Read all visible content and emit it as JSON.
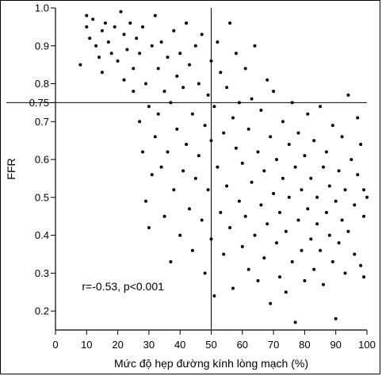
{
  "chart_data": {
    "type": "scatter",
    "xlabel": "Mức độ hẹp đường kính lòng mạch (%)",
    "ylabel": "FFR",
    "xlim": [
      0,
      100
    ],
    "ylim": [
      0.15,
      1.0
    ],
    "x_ticks": [
      0,
      10,
      20,
      30,
      40,
      50,
      60,
      70,
      80,
      90,
      100
    ],
    "y_ticks": [
      0.2,
      0.3,
      0.4,
      0.5,
      0.6,
      0.7,
      0.75,
      0.8,
      0.9,
      1.0
    ],
    "y_tick_labels": [
      "0.2",
      "0.3",
      "0.4",
      "0.5",
      "0.6",
      "0.7",
      "0.75",
      "0.8",
      "0.9",
      "1.0"
    ],
    "reference_lines": [
      {
        "axis": "x",
        "value": 50
      },
      {
        "axis": "y",
        "value": 0.75
      }
    ],
    "annotation": "r=-0.53, p<0.001",
    "grid": false,
    "point_color": "#000000",
    "points": [
      [
        8,
        0.85
      ],
      [
        10,
        0.98
      ],
      [
        10,
        0.95
      ],
      [
        11,
        0.92
      ],
      [
        12,
        0.97
      ],
      [
        13,
        0.9
      ],
      [
        14,
        0.87
      ],
      [
        15,
        0.94
      ],
      [
        15,
        0.83
      ],
      [
        16,
        0.96
      ],
      [
        17,
        0.91
      ],
      [
        18,
        0.88
      ],
      [
        19,
        0.95
      ],
      [
        20,
        0.86
      ],
      [
        21,
        0.99
      ],
      [
        22,
        0.93
      ],
      [
        22,
        0.81
      ],
      [
        23,
        0.89
      ],
      [
        24,
        0.96
      ],
      [
        25,
        0.84
      ],
      [
        25,
        0.78
      ],
      [
        26,
        0.92
      ],
      [
        27,
        0.88
      ],
      [
        27,
        0.7
      ],
      [
        28,
        0.95
      ],
      [
        28,
        0.62
      ],
      [
        29,
        0.8
      ],
      [
        29,
        0.49
      ],
      [
        30,
        0.42
      ],
      [
        30,
        0.74
      ],
      [
        31,
        0.9
      ],
      [
        31,
        0.56
      ],
      [
        32,
        0.66
      ],
      [
        32,
        0.98
      ],
      [
        33,
        0.84
      ],
      [
        33,
        0.72
      ],
      [
        34,
        0.58
      ],
      [
        34,
        0.91
      ],
      [
        35,
        0.45
      ],
      [
        35,
        0.78
      ],
      [
        36,
        0.87
      ],
      [
        36,
        0.62
      ],
      [
        37,
        0.33
      ],
      [
        37,
        0.75
      ],
      [
        38,
        0.94
      ],
      [
        38,
        0.52
      ],
      [
        39,
        0.68
      ],
      [
        39,
        0.82
      ],
      [
        40,
        0.4
      ],
      [
        40,
        0.88
      ],
      [
        41,
        0.57
      ],
      [
        41,
        0.79
      ],
      [
        42,
        0.96
      ],
      [
        42,
        0.64
      ],
      [
        43,
        0.47
      ],
      [
        43,
        0.85
      ],
      [
        44,
        0.72
      ],
      [
        44,
        0.36
      ],
      [
        45,
        0.9
      ],
      [
        45,
        0.55
      ],
      [
        46,
        0.8
      ],
      [
        46,
        0.61
      ],
      [
        47,
        0.44
      ],
      [
        47,
        0.93
      ],
      [
        48,
        0.69
      ],
      [
        48,
        0.3
      ],
      [
        49,
        0.77
      ],
      [
        49,
        0.52
      ],
      [
        50,
        0.86
      ],
      [
        50,
        0.39
      ],
      [
        50,
        0.65
      ],
      [
        51,
        0.24
      ],
      [
        51,
        0.74
      ],
      [
        52,
        0.58
      ],
      [
        52,
        0.91
      ],
      [
        53,
        0.46
      ],
      [
        53,
        0.83
      ],
      [
        54,
        0.67
      ],
      [
        54,
        0.35
      ],
      [
        55,
        0.79
      ],
      [
        55,
        0.53
      ],
      [
        56,
        0.96
      ],
      [
        56,
        0.42
      ],
      [
        57,
        0.71
      ],
      [
        57,
        0.26
      ],
      [
        58,
        0.63
      ],
      [
        58,
        0.88
      ],
      [
        59,
        0.49
      ],
      [
        59,
        0.75
      ],
      [
        60,
        0.37
      ],
      [
        60,
        0.59
      ],
      [
        61,
        0.84
      ],
      [
        61,
        0.45
      ],
      [
        62,
        0.68
      ],
      [
        62,
        0.31
      ],
      [
        63,
        0.76
      ],
      [
        63,
        0.54
      ],
      [
        64,
        0.4
      ],
      [
        64,
        0.9
      ],
      [
        65,
        0.62
      ],
      [
        65,
        0.28
      ],
      [
        66,
        0.73
      ],
      [
        66,
        0.48
      ],
      [
        67,
        0.57
      ],
      [
        67,
        0.34
      ],
      [
        68,
        0.81
      ],
      [
        68,
        0.43
      ],
      [
        69,
        0.66
      ],
      [
        69,
        0.22
      ],
      [
        70,
        0.51
      ],
      [
        70,
        0.78
      ],
      [
        71,
        0.38
      ],
      [
        71,
        0.6
      ],
      [
        72,
        0.46
      ],
      [
        72,
        0.29
      ],
      [
        73,
        0.7
      ],
      [
        73,
        0.55
      ],
      [
        74,
        0.41
      ],
      [
        74,
        0.25
      ],
      [
        75,
        0.64
      ],
      [
        75,
        0.5
      ],
      [
        76,
        0.33
      ],
      [
        76,
        0.75
      ],
      [
        77,
        0.17
      ],
      [
        77,
        0.58
      ],
      [
        78,
        0.44
      ],
      [
        78,
        0.67
      ],
      [
        79,
        0.36
      ],
      [
        79,
        0.52
      ],
      [
        80,
        0.28
      ],
      [
        80,
        0.61
      ],
      [
        81,
        0.47
      ],
      [
        81,
        0.72
      ],
      [
        82,
        0.39
      ],
      [
        82,
        0.55
      ],
      [
        83,
        0.31
      ],
      [
        83,
        0.65
      ],
      [
        84,
        0.43
      ],
      [
        84,
        0.5
      ],
      [
        85,
        0.36
      ],
      [
        85,
        0.74
      ],
      [
        86,
        0.58
      ],
      [
        86,
        0.27
      ],
      [
        87,
        0.46
      ],
      [
        87,
        0.62
      ],
      [
        88,
        0.4
      ],
      [
        88,
        0.53
      ],
      [
        89,
        0.33
      ],
      [
        89,
        0.69
      ],
      [
        90,
        0.18
      ],
      [
        90,
        0.49
      ],
      [
        91,
        0.57
      ],
      [
        91,
        0.38
      ],
      [
        92,
        0.44
      ],
      [
        92,
        0.66
      ],
      [
        93,
        0.52
      ],
      [
        93,
        0.3
      ],
      [
        94,
        0.77
      ],
      [
        94,
        0.41
      ],
      [
        95,
        0.6
      ],
      [
        96,
        0.35
      ],
      [
        96,
        0.48
      ],
      [
        97,
        0.56
      ],
      [
        97,
        0.71
      ],
      [
        98,
        0.32
      ],
      [
        98,
        0.64
      ],
      [
        99,
        0.45
      ],
      [
        99,
        0.52
      ],
      [
        99,
        0.29
      ],
      [
        100,
        0.5
      ]
    ]
  }
}
